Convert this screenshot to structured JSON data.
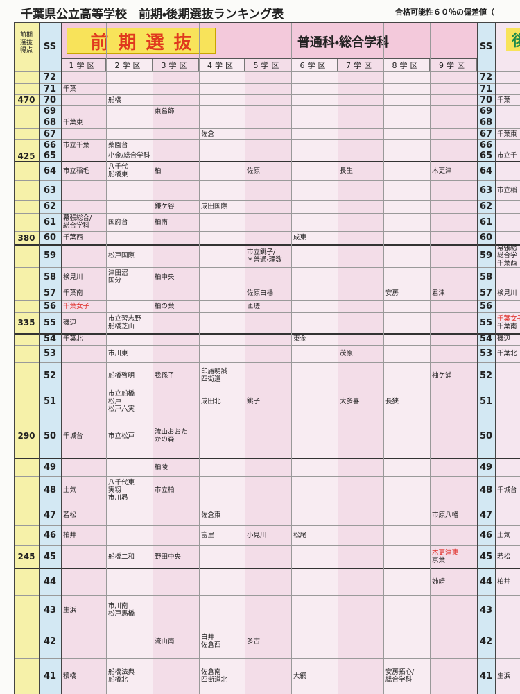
{
  "header": {
    "title": "千葉県公立高等学校　前期・後期選抜ランキング表",
    "note": "合格可能性６０％の偏差値（"
  },
  "table": {
    "score_header": [
      "前期",
      "選抜",
      "得点"
    ],
    "ss_header": "SS",
    "banner": "前期選抜",
    "course": "普通科・総合学科",
    "right_ss_header": "SS",
    "right_banner": "後",
    "districts": [
      "1学区",
      "2学区",
      "3学区",
      "4学区",
      "5学区",
      "6学区",
      "7学区",
      "8学区",
      "9学区"
    ],
    "rows": [
      {
        "ss": 72,
        "score": null,
        "cells": [
          null,
          null,
          null,
          null,
          null,
          null,
          null,
          null,
          null
        ],
        "right": null
      },
      {
        "ss": 71,
        "score": null,
        "cells": [
          [
            "千葉"
          ],
          null,
          null,
          null,
          null,
          null,
          null,
          null,
          null
        ],
        "right": null
      },
      {
        "ss": 70,
        "score": 470,
        "cells": [
          null,
          [
            "船橋"
          ],
          null,
          null,
          null,
          null,
          null,
          null,
          null
        ],
        "right": [
          "千葉"
        ]
      },
      {
        "ss": 69,
        "score": null,
        "cells": [
          null,
          null,
          [
            "東葛飾"
          ],
          null,
          null,
          null,
          null,
          null,
          null
        ],
        "right": null
      },
      {
        "ss": 68,
        "score": null,
        "cells": [
          [
            "千葉東"
          ],
          null,
          null,
          null,
          null,
          null,
          null,
          null,
          null
        ],
        "right": null
      },
      {
        "ss": 67,
        "score": null,
        "cells": [
          null,
          null,
          null,
          [
            "佐倉"
          ],
          null,
          null,
          null,
          null,
          null
        ],
        "right": [
          "千葉東"
        ]
      },
      {
        "ss": 66,
        "score": null,
        "cells": [
          [
            "市立千葉"
          ],
          [
            "薬園台"
          ],
          null,
          null,
          null,
          null,
          null,
          null,
          null
        ],
        "right": null
      },
      {
        "ss": 65,
        "score": 425,
        "cells": [
          null,
          [
            "小金/総合学科"
          ],
          null,
          null,
          null,
          null,
          null,
          null,
          null
        ],
        "right": [
          "市立千"
        ]
      },
      {
        "ss": 64,
        "score": null,
        "cells": [
          [
            "市立稲毛"
          ],
          [
            "八千代",
            "船橋東"
          ],
          [
            "柏"
          ],
          null,
          [
            "佐原"
          ],
          null,
          [
            "長生"
          ],
          null,
          [
            "木更津"
          ]
        ],
        "right": null
      },
      {
        "ss": 63,
        "score": null,
        "cells": [
          null,
          null,
          null,
          null,
          null,
          null,
          null,
          null,
          null
        ],
        "right": [
          "市立稲"
        ]
      },
      {
        "ss": 62,
        "score": null,
        "cells": [
          null,
          null,
          [
            "鎌ケ谷"
          ],
          [
            "成田国際"
          ],
          null,
          null,
          null,
          null,
          null
        ],
        "right": null
      },
      {
        "ss": 61,
        "score": null,
        "cells": [
          [
            "幕張総合/",
            "総合学科"
          ],
          [
            "国府台"
          ],
          [
            "柏南"
          ],
          null,
          null,
          null,
          null,
          null,
          null
        ],
        "right": null
      },
      {
        "ss": 60,
        "score": 380,
        "cells": [
          [
            "千葉西"
          ],
          null,
          null,
          null,
          null,
          [
            "成東"
          ],
          null,
          null,
          null
        ],
        "right": null
      },
      {
        "ss": 59,
        "score": null,
        "cells": [
          null,
          [
            "松戸国際"
          ],
          null,
          null,
          [
            "市立銚子/",
            "＊普通・理数"
          ],
          null,
          null,
          null,
          null
        ],
        "right": [
          "幕張総",
          "総合学",
          "千葉西"
        ]
      },
      {
        "ss": 58,
        "score": null,
        "cells": [
          [
            "検見川"
          ],
          [
            "津田沼",
            "国分"
          ],
          [
            "柏中央"
          ],
          null,
          null,
          null,
          null,
          null,
          null
        ],
        "right": null
      },
      {
        "ss": 57,
        "score": null,
        "cells": [
          [
            "千葉南"
          ],
          null,
          null,
          null,
          [
            "佐原白楊"
          ],
          null,
          null,
          [
            "安房"
          ],
          [
            "君津"
          ]
        ],
        "right": [
          "検見川"
        ]
      },
      {
        "ss": 56,
        "score": null,
        "cells": [
          [
            "千葉女子"
          ],
          null,
          [
            "柏の葉"
          ],
          null,
          [
            "匝瑳"
          ],
          null,
          null,
          null,
          null
        ],
        "right": null
      },
      {
        "ss": 55,
        "score": 335,
        "cells": [
          [
            "磯辺"
          ],
          [
            "市立習志野",
            "船橋芝山"
          ],
          null,
          null,
          null,
          null,
          null,
          null,
          null
        ],
        "right": [
          "千葉女子",
          "千葉南"
        ]
      },
      {
        "ss": 54,
        "score": null,
        "cells": [
          [
            "千葉北"
          ],
          null,
          null,
          null,
          null,
          [
            "東金"
          ],
          null,
          null,
          null
        ],
        "right": [
          "磯辺"
        ]
      },
      {
        "ss": 53,
        "score": null,
        "cells": [
          null,
          [
            "市川東"
          ],
          null,
          null,
          null,
          null,
          [
            "茂原"
          ],
          null,
          null
        ],
        "right": [
          "千葉北"
        ]
      },
      {
        "ss": 52,
        "score": null,
        "cells": [
          null,
          [
            "船橋啓明"
          ],
          [
            "我孫子"
          ],
          [
            "印旛明誠",
            "四街道"
          ],
          null,
          null,
          null,
          null,
          [
            "袖ケ浦"
          ]
        ],
        "right": null
      },
      {
        "ss": 51,
        "score": null,
        "cells": [
          null,
          [
            "市立船橋",
            "松戸",
            "松戸六実"
          ],
          null,
          [
            "成田北"
          ],
          [
            "銚子"
          ],
          null,
          [
            "大多喜"
          ],
          [
            "長狭"
          ],
          null
        ],
        "right": null
      },
      {
        "ss": 50,
        "score": 290,
        "cells": [
          [
            "千城台"
          ],
          [
            "市立松戸"
          ],
          [
            "流山おおた",
            "かの森"
          ],
          null,
          null,
          null,
          null,
          null,
          null
        ],
        "right": null
      },
      {
        "ss": 49,
        "score": null,
        "cells": [
          null,
          null,
          [
            "柏陵"
          ],
          null,
          null,
          null,
          null,
          null,
          null
        ],
        "right": null
      },
      {
        "ss": 48,
        "score": null,
        "cells": [
          [
            "土気"
          ],
          [
            "八千代東",
            "実籾",
            "市川昴"
          ],
          [
            "市立柏"
          ],
          null,
          null,
          null,
          null,
          null,
          null
        ],
        "right": [
          "千城台"
        ]
      },
      {
        "ss": 47,
        "score": null,
        "cells": [
          [
            "若松"
          ],
          null,
          null,
          [
            "佐倉東"
          ],
          null,
          null,
          null,
          null,
          [
            "市原八幡"
          ]
        ],
        "right": null
      },
      {
        "ss": 46,
        "score": null,
        "cells": [
          [
            "柏井"
          ],
          null,
          null,
          [
            "富里"
          ],
          [
            "小見川"
          ],
          [
            "松尾"
          ],
          null,
          null,
          null
        ],
        "right": [
          "土気"
        ]
      },
      {
        "ss": 45,
        "score": 245,
        "cells": [
          null,
          [
            "船橋二和"
          ],
          [
            "野田中央"
          ],
          null,
          null,
          null,
          null,
          null,
          [
            "木更津東",
            "京葉"
          ]
        ],
        "right": [
          "若松"
        ]
      },
      {
        "ss": 44,
        "score": null,
        "cells": [
          null,
          null,
          null,
          null,
          null,
          null,
          null,
          null,
          [
            "姉崎"
          ]
        ],
        "right": [
          "柏井"
        ]
      },
      {
        "ss": 43,
        "score": null,
        "cells": [
          [
            "生浜"
          ],
          [
            "市川南",
            "松戸馬橋"
          ],
          null,
          null,
          null,
          null,
          null,
          null,
          null
        ],
        "right": null
      },
      {
        "ss": 42,
        "score": null,
        "cells": [
          null,
          null,
          [
            "流山南"
          ],
          [
            "白井",
            "佐倉西"
          ],
          [
            "多古"
          ],
          null,
          null,
          null,
          null
        ],
        "right": null
      },
      {
        "ss": 41,
        "score": null,
        "cells": [
          [
            "犢橋"
          ],
          [
            "船橋法典",
            "船橋北"
          ],
          null,
          [
            "佐倉南",
            "四街道北"
          ],
          null,
          [
            "大網"
          ],
          null,
          [
            "安房拓心/",
            "総合学科"
          ],
          null
        ],
        "right": [
          "生浜"
        ]
      }
    ]
  }
}
